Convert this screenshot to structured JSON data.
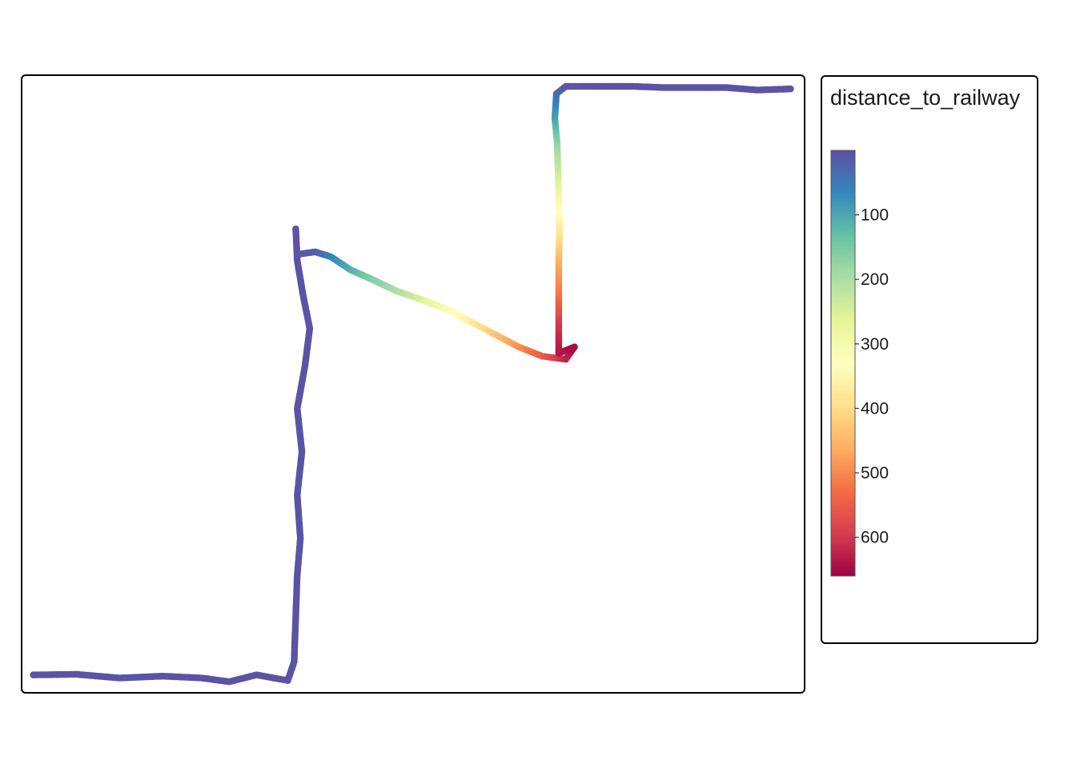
{
  "chart_data": {
    "type": "scatter",
    "title": "",
    "xlabel": "",
    "ylabel": "",
    "axes_visible": false,
    "grid": false,
    "x_range": [
      0,
      100
    ],
    "y_range": [
      0,
      100
    ],
    "color_variable": "distance_to_railway",
    "legend": {
      "title": "distance_to_railway",
      "placement": "right",
      "ticks": [
        "100",
        "200",
        "300",
        "400",
        "500",
        "600"
      ],
      "tick_values": [
        100,
        200,
        300,
        400,
        500,
        600
      ],
      "range": [
        0,
        660
      ]
    },
    "colormap": {
      "name": "Spectral",
      "stops": [
        "#5e4fa2",
        "#3288bd",
        "#66c2a5",
        "#abdda4",
        "#e6f598",
        "#ffffbf",
        "#fee08b",
        "#fdae61",
        "#f46d43",
        "#d53e4f",
        "#9e0142"
      ]
    },
    "track": [
      {
        "x": 1.5,
        "y": 2.9,
        "value": 5
      },
      {
        "x": 7.0,
        "y": 3.0,
        "value": 5
      },
      {
        "x": 12.5,
        "y": 2.4,
        "value": 5
      },
      {
        "x": 18.0,
        "y": 2.7,
        "value": 5
      },
      {
        "x": 23.0,
        "y": 2.4,
        "value": 5
      },
      {
        "x": 26.5,
        "y": 1.8,
        "value": 5
      },
      {
        "x": 30.0,
        "y": 2.9,
        "value": 5
      },
      {
        "x": 34.0,
        "y": 2.0,
        "value": 5
      },
      {
        "x": 34.8,
        "y": 5.0,
        "value": 5
      },
      {
        "x": 35.0,
        "y": 12.0,
        "value": 5
      },
      {
        "x": 35.2,
        "y": 19.0,
        "value": 5
      },
      {
        "x": 35.6,
        "y": 25.0,
        "value": 5
      },
      {
        "x": 35.2,
        "y": 32.0,
        "value": 5
      },
      {
        "x": 35.8,
        "y": 39.0,
        "value": 5
      },
      {
        "x": 35.2,
        "y": 46.0,
        "value": 5
      },
      {
        "x": 36.2,
        "y": 53.0,
        "value": 5
      },
      {
        "x": 36.8,
        "y": 59.0,
        "value": 5
      },
      {
        "x": 36.0,
        "y": 64.0,
        "value": 5
      },
      {
        "x": 35.2,
        "y": 70.0,
        "value": 5
      },
      {
        "x": 35.0,
        "y": 75.5,
        "value": 5
      },
      {
        "x": 35.4,
        "y": 71.0,
        "value": 5
      },
      {
        "x": 34.9,
        "y": 78.0,
        "value": 5
      },
      {
        "x": 34.8,
        "y": 71.5,
        "value": 5
      },
      {
        "x": 35.0,
        "y": 72.0,
        "value": 5
      },
      {
        "x": 34.8,
        "y": 71.0,
        "value": 5
      },
      {
        "x": 35.0,
        "y": 70.0,
        "value": 5
      }
    ],
    "upper_track": [
      {
        "x": 35.3,
        "y": 71.0,
        "value": 10
      },
      {
        "x": 37.5,
        "y": 71.4,
        "value": 15
      },
      {
        "x": 39.5,
        "y": 70.6,
        "value": 60
      },
      {
        "x": 42.0,
        "y": 68.5,
        "value": 110
      },
      {
        "x": 45.0,
        "y": 66.8,
        "value": 160
      },
      {
        "x": 48.0,
        "y": 65.0,
        "value": 200
      },
      {
        "x": 51.5,
        "y": 63.5,
        "value": 260
      },
      {
        "x": 54.5,
        "y": 62.0,
        "value": 310
      },
      {
        "x": 57.5,
        "y": 60.0,
        "value": 370
      },
      {
        "x": 60.5,
        "y": 58.0,
        "value": 430
      },
      {
        "x": 63.5,
        "y": 56.0,
        "value": 490
      },
      {
        "x": 66.5,
        "y": 54.5,
        "value": 550
      },
      {
        "x": 69.5,
        "y": 54.0,
        "value": 620
      },
      {
        "x": 70.6,
        "y": 56.0,
        "value": 650
      },
      {
        "x": 68.6,
        "y": 55.0,
        "value": 640
      },
      {
        "x": 68.6,
        "y": 60.0,
        "value": 600
      },
      {
        "x": 68.6,
        "y": 65.0,
        "value": 520
      },
      {
        "x": 68.6,
        "y": 70.0,
        "value": 460
      },
      {
        "x": 68.7,
        "y": 75.0,
        "value": 380
      },
      {
        "x": 68.6,
        "y": 80.0,
        "value": 300
      },
      {
        "x": 68.5,
        "y": 85.0,
        "value": 230
      },
      {
        "x": 68.4,
        "y": 89.0,
        "value": 180
      },
      {
        "x": 68.1,
        "y": 93.0,
        "value": 100
      },
      {
        "x": 68.3,
        "y": 97.0,
        "value": 40
      },
      {
        "x": 69.5,
        "y": 98.2,
        "value": 10
      },
      {
        "x": 73.5,
        "y": 98.2,
        "value": 5
      },
      {
        "x": 78.0,
        "y": 98.2,
        "value": 5
      },
      {
        "x": 82.0,
        "y": 98.0,
        "value": 5
      },
      {
        "x": 86.0,
        "y": 98.0,
        "value": 5
      },
      {
        "x": 90.0,
        "y": 98.0,
        "value": 5
      },
      {
        "x": 94.0,
        "y": 97.6,
        "value": 5
      },
      {
        "x": 98.5,
        "y": 97.8,
        "value": 5
      }
    ]
  }
}
